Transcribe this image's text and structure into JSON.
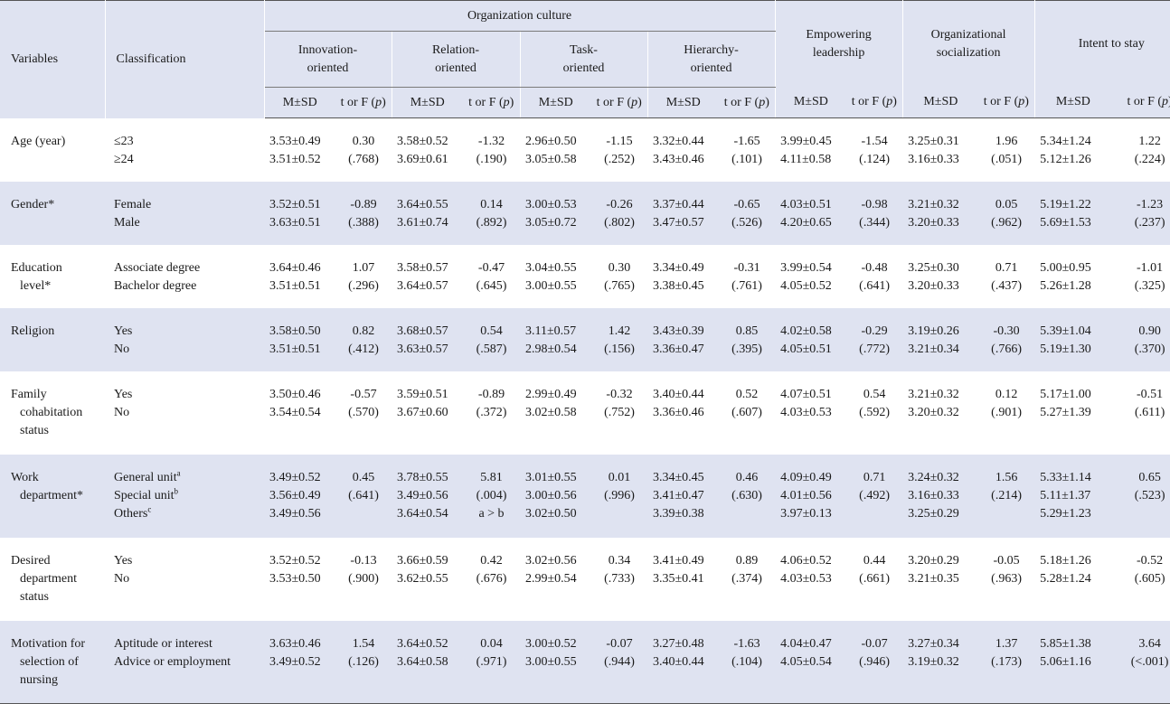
{
  "headers": {
    "variables": "Variables",
    "classification": "Classification",
    "organization_culture": "Organization culture",
    "innovation": [
      "Innovation-",
      "oriented"
    ],
    "relation": [
      "Relation-",
      "oriented"
    ],
    "task": [
      "Task-",
      "oriented"
    ],
    "hierarchy": [
      "Hierarchy-",
      "oriented"
    ],
    "empowering": [
      "Empowering",
      "leadership"
    ],
    "socialization": [
      "Organizational",
      "socialization"
    ],
    "intent": "Intent to stay",
    "msd": "M±SD",
    "tf": "t or F (",
    "p": "p",
    "close": ")"
  },
  "rows": [
    {
      "var": [
        "Age (year)"
      ],
      "cls": [
        "≤23",
        "≥24"
      ],
      "cls_sup": [
        "",
        ""
      ],
      "cells": [
        [
          "3.53±0.49",
          "3.51±0.52"
        ],
        [
          "0.30",
          "(.768)"
        ],
        [
          "3.58±0.52",
          "3.69±0.61"
        ],
        [
          "-1.32",
          "(.190)"
        ],
        [
          "2.96±0.50",
          "3.05±0.58"
        ],
        [
          "-1.15",
          "(.252)"
        ],
        [
          "3.32±0.44",
          "3.43±0.46"
        ],
        [
          "-1.65",
          "(.101)"
        ],
        [
          "3.99±0.45",
          "4.11±0.58"
        ],
        [
          "-1.54",
          "(.124)"
        ],
        [
          "3.25±0.31",
          "3.16±0.33"
        ],
        [
          "1.96",
          "(.051)"
        ],
        [
          "5.34±1.24",
          "5.12±1.26"
        ],
        [
          "1.22",
          "(.224)"
        ]
      ]
    },
    {
      "var": [
        "Gender*"
      ],
      "cls": [
        "Female",
        "Male"
      ],
      "cls_sup": [
        "",
        ""
      ],
      "cells": [
        [
          "3.52±0.51",
          "3.63±0.51"
        ],
        [
          "-0.89",
          "(.388)"
        ],
        [
          "3.64±0.55",
          "3.61±0.74"
        ],
        [
          "0.14",
          "(.892)"
        ],
        [
          "3.00±0.53",
          "3.05±0.72"
        ],
        [
          "-0.26",
          "(.802)"
        ],
        [
          "3.37±0.44",
          "3.47±0.57"
        ],
        [
          "-0.65",
          "(.526)"
        ],
        [
          "4.03±0.51",
          "4.20±0.65"
        ],
        [
          "-0.98",
          "(.344)"
        ],
        [
          "3.21±0.32",
          "3.20±0.33"
        ],
        [
          "0.05",
          "(.962)"
        ],
        [
          "5.19±1.22",
          "5.69±1.53"
        ],
        [
          "-1.23",
          "(.237)"
        ]
      ]
    },
    {
      "var": [
        "Education",
        "level*"
      ],
      "cls": [
        "Associate degree",
        "Bachelor degree"
      ],
      "cls_sup": [
        "",
        ""
      ],
      "cells": [
        [
          "3.64±0.46",
          "3.51±0.51"
        ],
        [
          "1.07",
          "(.296)"
        ],
        [
          "3.58±0.57",
          "3.64±0.57"
        ],
        [
          "-0.47",
          "(.645)"
        ],
        [
          "3.04±0.55",
          "3.00±0.55"
        ],
        [
          "0.30",
          "(.765)"
        ],
        [
          "3.34±0.49",
          "3.38±0.45"
        ],
        [
          "-0.31",
          "(.761)"
        ],
        [
          "3.99±0.54",
          "4.05±0.52"
        ],
        [
          "-0.48",
          "(.641)"
        ],
        [
          "3.25±0.30",
          "3.20±0.33"
        ],
        [
          "0.71",
          "(.437)"
        ],
        [
          "5.00±0.95",
          "5.26±1.28"
        ],
        [
          "-1.01",
          "(.325)"
        ]
      ]
    },
    {
      "var": [
        "Religion"
      ],
      "cls": [
        "Yes",
        "No"
      ],
      "cls_sup": [
        "",
        ""
      ],
      "cells": [
        [
          "3.58±0.50",
          "3.51±0.51"
        ],
        [
          "0.82",
          "(.412)"
        ],
        [
          "3.68±0.57",
          "3.63±0.57"
        ],
        [
          "0.54",
          "(.587)"
        ],
        [
          "3.11±0.57",
          "2.98±0.54"
        ],
        [
          "1.42",
          "(.156)"
        ],
        [
          "3.43±0.39",
          "3.36±0.47"
        ],
        [
          "0.85",
          "(.395)"
        ],
        [
          "4.02±0.58",
          "4.05±0.51"
        ],
        [
          "-0.29",
          "(.772)"
        ],
        [
          "3.19±0.26",
          "3.21±0.34"
        ],
        [
          "-0.30",
          "(.766)"
        ],
        [
          "5.39±1.04",
          "5.19±1.30"
        ],
        [
          "0.90",
          "(.370)"
        ]
      ]
    },
    {
      "var": [
        "Family",
        "cohabitation",
        "status"
      ],
      "cls": [
        "Yes",
        "No"
      ],
      "cls_sup": [
        "",
        ""
      ],
      "cells": [
        [
          "3.50±0.46",
          "3.54±0.54"
        ],
        [
          "-0.57",
          "(.570)"
        ],
        [
          "3.59±0.51",
          "3.67±0.60"
        ],
        [
          "-0.89",
          "(.372)"
        ],
        [
          "2.99±0.49",
          "3.02±0.58"
        ],
        [
          "-0.32",
          "(.752)"
        ],
        [
          "3.40±0.44",
          "3.36±0.46"
        ],
        [
          "0.52",
          "(.607)"
        ],
        [
          "4.07±0.51",
          "4.03±0.53"
        ],
        [
          "0.54",
          "(.592)"
        ],
        [
          "3.21±0.32",
          "3.20±0.32"
        ],
        [
          "0.12",
          "(.901)"
        ],
        [
          "5.17±1.00",
          "5.27±1.39"
        ],
        [
          "-0.51",
          "(.611)"
        ]
      ]
    },
    {
      "var": [
        "Work",
        "department*"
      ],
      "cls": [
        "General unit",
        "Special unit",
        "Others"
      ],
      "cls_sup": [
        "a",
        "b",
        "c"
      ],
      "cells": [
        [
          "3.49±0.52",
          "3.56±0.49",
          "3.49±0.56"
        ],
        [
          "0.45",
          "(.641)"
        ],
        [
          "3.78±0.55",
          "3.49±0.56",
          "3.64±0.54"
        ],
        [
          "5.81",
          "(.004)",
          "a > b"
        ],
        [
          "3.01±0.55",
          "3.00±0.56",
          "3.02±0.50"
        ],
        [
          "0.01",
          "(.996)"
        ],
        [
          "3.34±0.45",
          "3.41±0.47",
          "3.39±0.38"
        ],
        [
          "0.46",
          "(.630)"
        ],
        [
          "4.09±0.49",
          "4.01±0.56",
          "3.97±0.13"
        ],
        [
          "0.71",
          "(.492)"
        ],
        [
          "3.24±0.32",
          "3.16±0.33",
          "3.25±0.29"
        ],
        [
          "1.56",
          "(.214)"
        ],
        [
          "5.33±1.14",
          "5.11±1.37",
          "5.29±1.23"
        ],
        [
          "0.65",
          "(.523)"
        ]
      ]
    },
    {
      "var": [
        "Desired",
        "department",
        "status"
      ],
      "cls": [
        "Yes",
        "No"
      ],
      "cls_sup": [
        "",
        ""
      ],
      "cells": [
        [
          "3.52±0.52",
          "3.53±0.50"
        ],
        [
          "-0.13",
          "(.900)"
        ],
        [
          "3.66±0.59",
          "3.62±0.55"
        ],
        [
          "0.42",
          "(.676)"
        ],
        [
          "3.02±0.56",
          "2.99±0.54"
        ],
        [
          "0.34",
          "(.733)"
        ],
        [
          "3.41±0.49",
          "3.35±0.41"
        ],
        [
          "0.89",
          "(.374)"
        ],
        [
          "4.06±0.52",
          "4.03±0.53"
        ],
        [
          "0.44",
          "(.661)"
        ],
        [
          "3.20±0.29",
          "3.21±0.35"
        ],
        [
          "-0.05",
          "(.963)"
        ],
        [
          "5.18±1.26",
          "5.28±1.24"
        ],
        [
          "-0.52",
          "(.605)"
        ]
      ]
    },
    {
      "var": [
        "Motivation for",
        "selection of",
        "nursing"
      ],
      "cls": [
        "Aptitude or interest",
        "Advice or employment"
      ],
      "cls_sup": [
        "",
        ""
      ],
      "cells": [
        [
          "3.63±0.46",
          "3.49±0.52"
        ],
        [
          "1.54",
          "(.126)"
        ],
        [
          "3.64±0.52",
          "3.64±0.58"
        ],
        [
          "0.04",
          "(.971)"
        ],
        [
          "3.00±0.52",
          "3.00±0.55"
        ],
        [
          "-0.07",
          "(.944)"
        ],
        [
          "3.27±0.48",
          "3.40±0.44"
        ],
        [
          "-1.63",
          "(.104)"
        ],
        [
          "4.04±0.47",
          "4.05±0.54"
        ],
        [
          "-0.07",
          "(.946)"
        ],
        [
          "3.27±0.34",
          "3.19±0.32"
        ],
        [
          "1.37",
          "(.173)"
        ],
        [
          "5.85±1.38",
          "5.06±1.16"
        ],
        [
          "3.64",
          "(<.001)"
        ]
      ]
    }
  ]
}
